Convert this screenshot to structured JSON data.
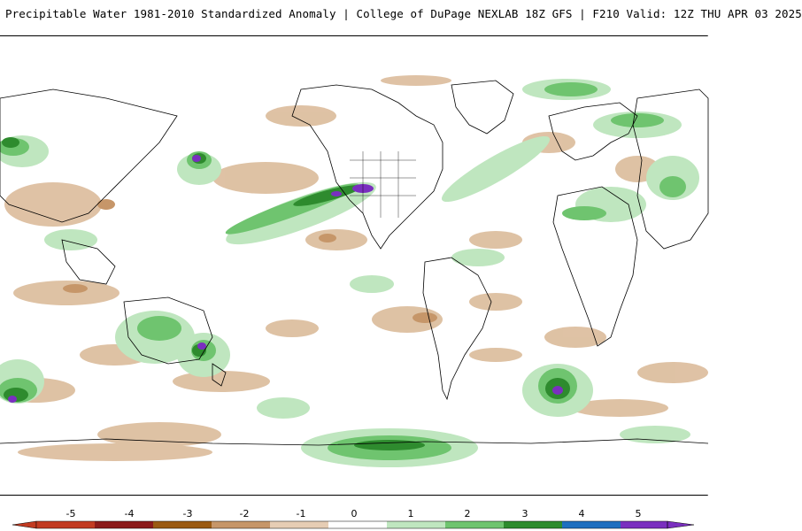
{
  "header": {
    "title": "Precipitable Water 1981-2010 Standardized Anomaly | College of DuPage NEXLAB   18Z GFS | F210 Valid: 12Z THU APR 03 2025"
  },
  "map": {
    "projection": "global cylindrical",
    "field": "precipitable water standardized anomaly"
  },
  "colorbar": {
    "labels": [
      "-5",
      "-4",
      "-3",
      "-2",
      "-1",
      "0",
      "1",
      "2",
      "3",
      "4",
      "5"
    ],
    "colors": [
      "#c23b22",
      "#8b1a1a",
      "#9a5a12",
      "#c69669",
      "#e6cdb4",
      "#ffffff",
      "#bfe6bf",
      "#6fc46f",
      "#2e8b2e",
      "#1f6fbf",
      "#7a2fbf"
    ]
  }
}
